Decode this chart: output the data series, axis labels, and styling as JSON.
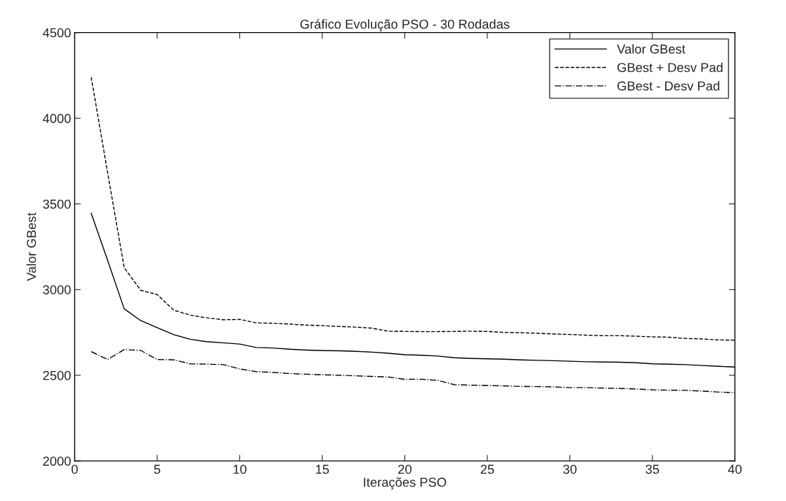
{
  "chart_data": {
    "type": "line",
    "title": "Gráfico Evolução PSO - 30 Rodadas",
    "xlabel": "Iterações PSO",
    "ylabel": "Valor GBest",
    "x": [
      1,
      2,
      3,
      4,
      5,
      6,
      7,
      8,
      9,
      10,
      11,
      12,
      13,
      14,
      15,
      16,
      17,
      18,
      19,
      20,
      21,
      22,
      23,
      24,
      25,
      26,
      27,
      28,
      29,
      30,
      31,
      32,
      33,
      34,
      35,
      36,
      37,
      38,
      39,
      40
    ],
    "series": [
      {
        "name": "Valor GBest",
        "color": "#000000",
        "line_style": "solid",
        "values": [
          3446,
          3170,
          2888,
          2819,
          2778,
          2737,
          2710,
          2696,
          2689,
          2682,
          2662,
          2659,
          2652,
          2647,
          2644,
          2643,
          2640,
          2635,
          2628,
          2620,
          2617,
          2612,
          2602,
          2598,
          2596,
          2594,
          2590,
          2587,
          2585,
          2582,
          2579,
          2577,
          2576,
          2573,
          2567,
          2565,
          2562,
          2557,
          2552,
          2548
        ]
      },
      {
        "name": "GBest + Desv Pad",
        "color": "#000000",
        "line_style": "dashed",
        "values": [
          4240,
          3680,
          3128,
          2996,
          2971,
          2880,
          2851,
          2835,
          2824,
          2826,
          2806,
          2803,
          2799,
          2793,
          2789,
          2785,
          2781,
          2775,
          2757,
          2756,
          2755,
          2755,
          2756,
          2757,
          2756,
          2750,
          2748,
          2745,
          2741,
          2738,
          2734,
          2731,
          2731,
          2728,
          2724,
          2722,
          2715,
          2712,
          2706,
          2705
        ]
      },
      {
        "name": "GBest - Desv Pad",
        "color": "#000000",
        "line_style": "dashdot",
        "values": [
          2638,
          2592,
          2650,
          2645,
          2592,
          2590,
          2567,
          2565,
          2562,
          2537,
          2521,
          2517,
          2510,
          2506,
          2503,
          2500,
          2497,
          2493,
          2490,
          2476,
          2477,
          2470,
          2445,
          2442,
          2440,
          2438,
          2435,
          2434,
          2432,
          2428,
          2428,
          2425,
          2423,
          2420,
          2415,
          2413,
          2412,
          2408,
          2402,
          2398
        ]
      }
    ],
    "xlim": [
      0,
      40
    ],
    "xticks": [
      0,
      5,
      10,
      15,
      20,
      25,
      30,
      35,
      40
    ],
    "ylim": [
      2000,
      4500
    ],
    "yticks": [
      2000,
      2500,
      3000,
      3500,
      4000,
      4500
    ],
    "grid": false,
    "legend": "top right",
    "marker": "none"
  }
}
